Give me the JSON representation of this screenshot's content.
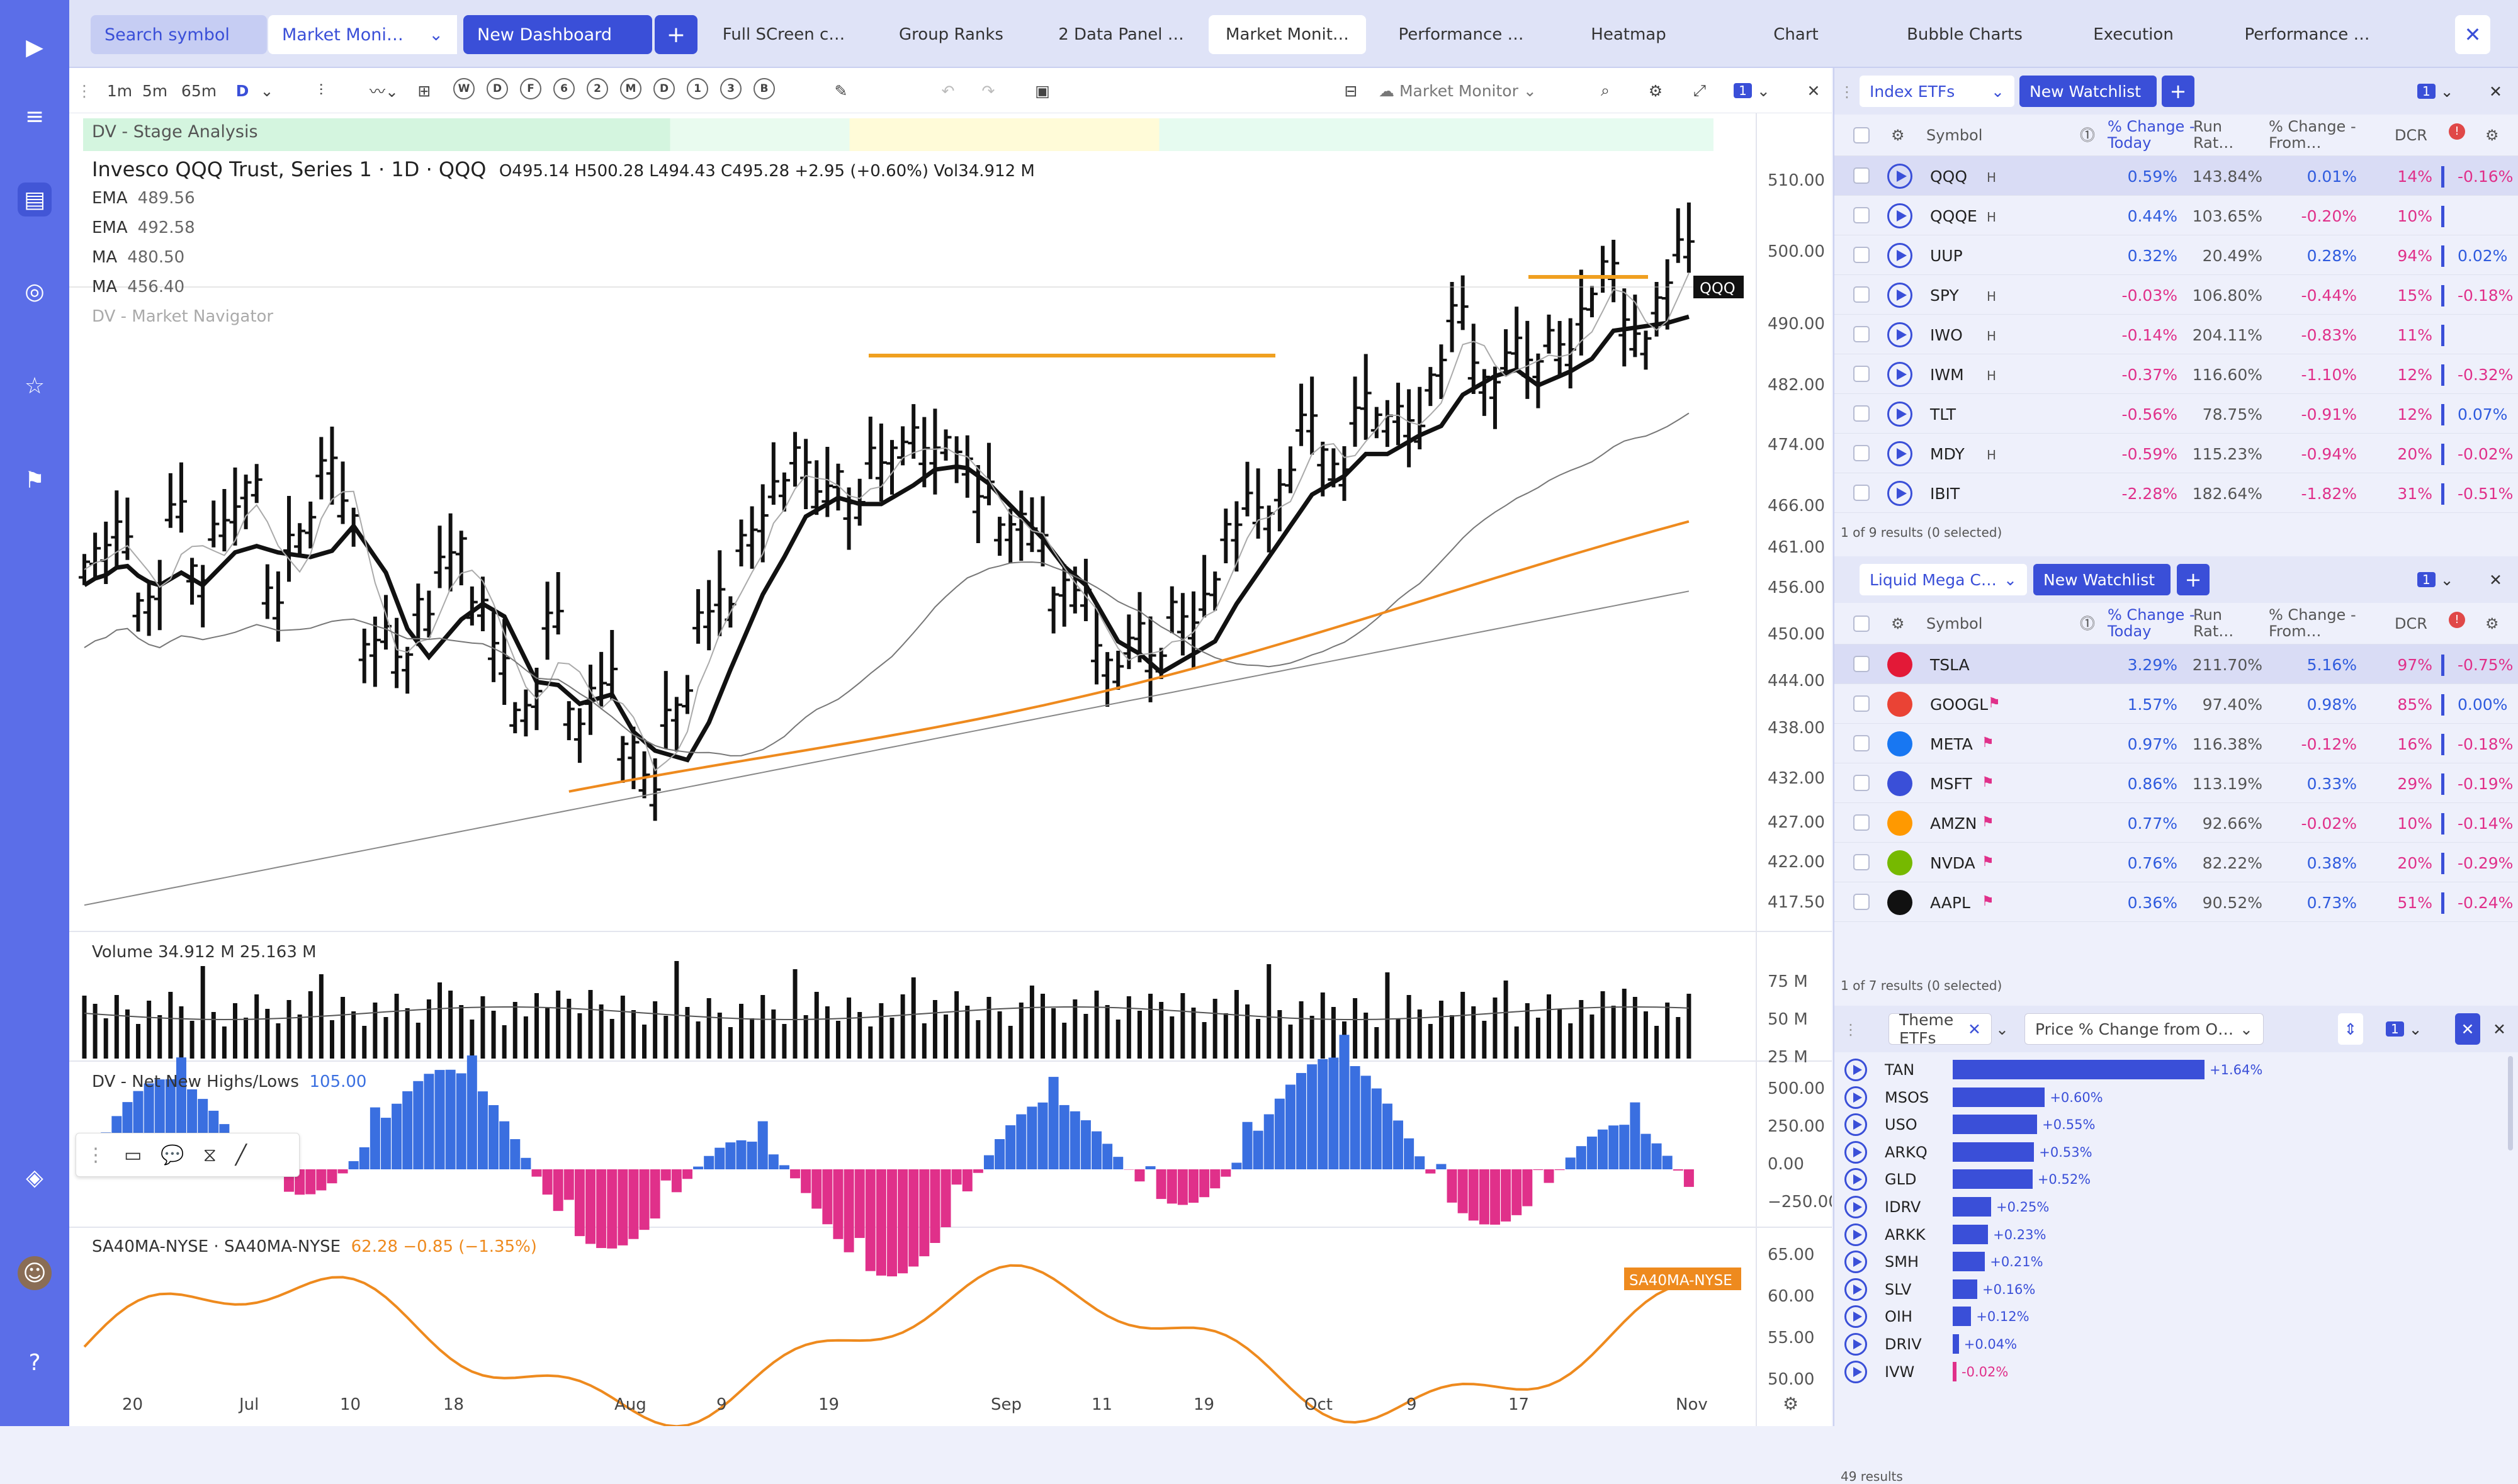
{
  "topbar": {
    "search_label": "Search symbol",
    "dashboard_select": "Market Moni…",
    "new_dashboard": "New Dashboard",
    "tabs": [
      "Full SCreen c…",
      "Group Ranks",
      "2 Data Panel …",
      "Market Monit…",
      "Performance …",
      "Heatmap",
      "Chart",
      "Bubble Charts",
      "Execution",
      "Performance …"
    ]
  },
  "toolbar": {
    "intervals": [
      "1m",
      "5m",
      "65m",
      "D"
    ],
    "period_buttons": [
      "W",
      "D",
      "F",
      "6",
      "2",
      "M",
      "D",
      "1",
      "3",
      "B"
    ],
    "layout_name": "Market Monitor",
    "link_badge": "1"
  },
  "chart": {
    "stage_indicator": "DV - Stage Analysis",
    "title": "Invesco QQQ Trust, Series 1 · 1D · QQQ",
    "ohlc": "O495.14  H500.28  L494.43  C495.28  +2.95 (+0.60%)  Vol34.912 M",
    "legend": [
      {
        "label": "EMA",
        "value": "489.56"
      },
      {
        "label": "EMA",
        "value": "492.58"
      },
      {
        "label": "MA",
        "value": "480.50"
      },
      {
        "label": "MA",
        "value": "456.40"
      }
    ],
    "navigator": "DV - Market Navigator",
    "price_ticks": [
      "510.00",
      "500.00",
      "490.00",
      "482.00",
      "474.00",
      "466.00",
      "461.00",
      "456.00",
      "450.00",
      "444.00",
      "438.00",
      "432.00",
      "427.00",
      "422.00",
      "417.50"
    ],
    "last_price_tag": "QQQ",
    "volume_label": "Volume  34.912 M  25.163 M",
    "volume_ticks": [
      "75 M",
      "50 M",
      "25 M"
    ],
    "nnhl_label": "DV - Net New Highs/Lows",
    "nnhl_value": "105.00",
    "nnhl_ticks": [
      "500.00",
      "250.00",
      "0.00",
      "−250.00"
    ],
    "sa_label": "SA40MA-NYSE · SA40MA-NYSE",
    "sa_value": "62.28  −0.85 (−1.35%)",
    "sa_tag": "SA40MA-NYSE",
    "sa_ticks": [
      "65.00",
      "60.00",
      "55.00",
      "50.00"
    ],
    "date_ticks": [
      "20",
      "Jul",
      "10",
      "18",
      "Aug",
      "9",
      "19",
      "Sep",
      "11",
      "19",
      "Oct",
      "9",
      "17",
      "Nov"
    ]
  },
  "watchlist1": {
    "name": "Index ETFs",
    "new_btn": "New Watchlist",
    "link": "1",
    "headers": {
      "symbol": "Symbol",
      "change": "% Change - Today",
      "run": "Run Rat…",
      "from": "% Change - From…",
      "dcr": "DCR"
    },
    "rows": [
      {
        "sym": "QQQ",
        "tag": "H",
        "chg": "0.59%",
        "run": "143.84%",
        "from": "0.01%",
        "dcr": "14%",
        "last": "-0.16%"
      },
      {
        "sym": "QQQE",
        "tag": "H",
        "chg": "0.44%",
        "run": "103.65%",
        "from": "-0.20%",
        "dcr": "10%",
        "last": ""
      },
      {
        "sym": "UUP",
        "tag": "",
        "chg": "0.32%",
        "run": "20.49%",
        "from": "0.28%",
        "dcr": "94%",
        "last": "0.02%"
      },
      {
        "sym": "SPY",
        "tag": "H",
        "chg": "-0.03%",
        "run": "106.80%",
        "from": "-0.44%",
        "dcr": "15%",
        "last": "-0.18%"
      },
      {
        "sym": "IWO",
        "tag": "H",
        "chg": "-0.14%",
        "run": "204.11%",
        "from": "-0.83%",
        "dcr": "11%",
        "last": ""
      },
      {
        "sym": "IWM",
        "tag": "H",
        "chg": "-0.37%",
        "run": "116.60%",
        "from": "-1.10%",
        "dcr": "12%",
        "last": "-0.32%"
      },
      {
        "sym": "TLT",
        "tag": "",
        "chg": "-0.56%",
        "run": "78.75%",
        "from": "-0.91%",
        "dcr": "12%",
        "last": "0.07%"
      },
      {
        "sym": "MDY",
        "tag": "H",
        "chg": "-0.59%",
        "run": "115.23%",
        "from": "-0.94%",
        "dcr": "20%",
        "last": "-0.02%"
      },
      {
        "sym": "IBIT",
        "tag": "",
        "chg": "-2.28%",
        "run": "182.64%",
        "from": "-1.82%",
        "dcr": "31%",
        "last": "-0.51%"
      }
    ],
    "results": "1 of 9 results (0 selected)"
  },
  "watchlist2": {
    "name": "Liquid Mega C…",
    "new_btn": "New Watchlist",
    "link": "1",
    "headers": {
      "symbol": "Symbol",
      "change": "% Change - Today",
      "run": "Run Rat…",
      "from": "% Change - From…",
      "dcr": "DCR"
    },
    "rows": [
      {
        "sym": "TSLA",
        "chg": "3.29%",
        "run": "211.70%",
        "from": "5.16%",
        "dcr": "97%",
        "last": "-0.75%",
        "logo": "#e31937"
      },
      {
        "sym": "GOOGL",
        "chg": "1.57%",
        "run": "97.40%",
        "from": "0.98%",
        "dcr": "85%",
        "last": "0.00%",
        "logo": "#ea4335"
      },
      {
        "sym": "META",
        "chg": "0.97%",
        "run": "116.38%",
        "from": "-0.12%",
        "dcr": "16%",
        "last": "-0.18%",
        "logo": "#1877f2"
      },
      {
        "sym": "MSFT",
        "chg": "0.86%",
        "run": "113.19%",
        "from": "0.33%",
        "dcr": "29%",
        "last": "-0.19%",
        "logo": "#3a4fd8"
      },
      {
        "sym": "AMZN",
        "chg": "0.77%",
        "run": "92.66%",
        "from": "-0.02%",
        "dcr": "10%",
        "last": "-0.14%",
        "logo": "#ff9900"
      },
      {
        "sym": "NVDA",
        "chg": "0.76%",
        "run": "82.22%",
        "from": "0.38%",
        "dcr": "20%",
        "last": "-0.29%",
        "logo": "#76b900"
      },
      {
        "sym": "AAPL",
        "chg": "0.36%",
        "run": "90.52%",
        "from": "0.73%",
        "dcr": "51%",
        "last": "-0.24%",
        "logo": "#111111"
      }
    ],
    "results": "1 of 7 results (0 selected)"
  },
  "themes": {
    "name": "Theme ETFs",
    "metric": "Price % Change from O…",
    "link": "1",
    "rows": [
      {
        "sym": "TAN",
        "val": 1.64,
        "label": "+1.64%"
      },
      {
        "sym": "MSOS",
        "val": 0.6,
        "label": "+0.60%"
      },
      {
        "sym": "USO",
        "val": 0.55,
        "label": "+0.55%"
      },
      {
        "sym": "ARKQ",
        "val": 0.53,
        "label": "+0.53%"
      },
      {
        "sym": "GLD",
        "val": 0.52,
        "label": "+0.52%"
      },
      {
        "sym": "IDRV",
        "val": 0.25,
        "label": "+0.25%"
      },
      {
        "sym": "ARKK",
        "val": 0.23,
        "label": "+0.23%"
      },
      {
        "sym": "SMH",
        "val": 0.21,
        "label": "+0.21%"
      },
      {
        "sym": "SLV",
        "val": 0.16,
        "label": "+0.16%"
      },
      {
        "sym": "OIH",
        "val": 0.12,
        "label": "+0.12%"
      },
      {
        "sym": "DRIV",
        "val": 0.04,
        "label": "+0.04%"
      },
      {
        "sym": "IVW",
        "val": -0.02,
        "label": "-0.02%"
      }
    ],
    "results": "49 results"
  }
}
